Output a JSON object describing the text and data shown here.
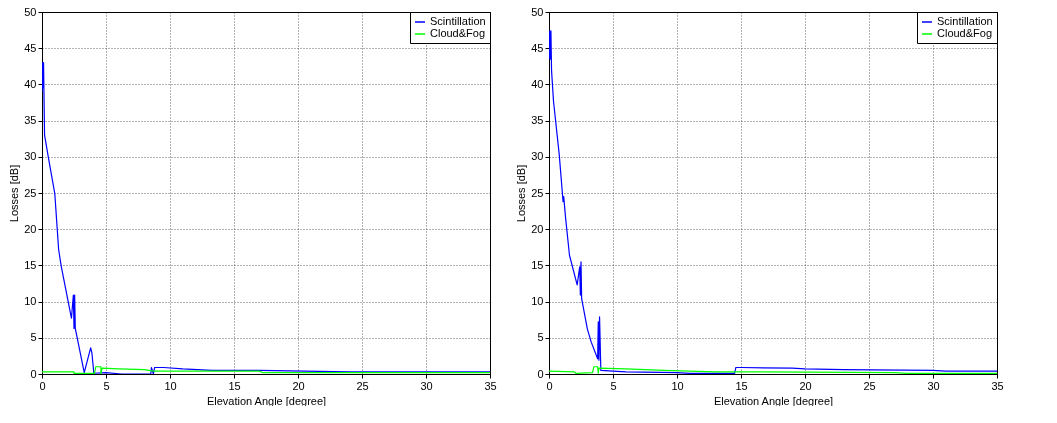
{
  "chart_data": [
    {
      "type": "line",
      "xlabel": "Elevation Angle [degree]",
      "ylabel": "Losses [dB]",
      "xlim": [
        0,
        35
      ],
      "ylim": [
        0,
        50
      ],
      "xticks": [
        0,
        5,
        10,
        15,
        20,
        25,
        30,
        35
      ],
      "yticks": [
        0,
        5,
        10,
        15,
        20,
        25,
        30,
        35,
        40,
        45,
        50
      ],
      "grid": true,
      "legend": "top right",
      "series": [
        {
          "name": "Scintillation",
          "color": "#0000ff",
          "x": [
            0,
            0.05,
            0.1,
            0.12,
            0.2,
            0.5,
            1.0,
            1.3,
            1.5,
            2.0,
            2.3,
            2.45,
            2.5,
            2.55,
            2.6,
            3.3,
            3.8,
            3.9,
            4.05,
            5.0,
            6.2,
            8.5,
            8.55,
            8.7,
            8.8,
            9.5,
            11,
            13.3,
            17,
            24,
            35
          ],
          "values": [
            39,
            43,
            39.5,
            43,
            33,
            29.9,
            24.9,
            17.2,
            14.9,
            10.4,
            7.7,
            10.9,
            6.3,
            10.9,
            6.3,
            0.2,
            3.6,
            2.9,
            0.1,
            0.2,
            0,
            0,
            0.9,
            0,
            0.9,
            0.9,
            0.7,
            0.5,
            0.5,
            0.3,
            0.3
          ]
        },
        {
          "name": "Cloud&Fog",
          "color": "#00ff00",
          "x": [
            0,
            2.5,
            2.5,
            4.1,
            4.2,
            4.6,
            4.6,
            4.7,
            6,
            8,
            8.7,
            17,
            17.2,
            35
          ],
          "values": [
            0.3,
            0.3,
            0.1,
            0.1,
            1.0,
            1.0,
            0,
            0.8,
            0.7,
            0.6,
            0.4,
            0.4,
            0.2,
            0.2
          ]
        }
      ]
    },
    {
      "type": "line",
      "xlabel": "Elevation Angle [degree]",
      "ylabel": "Losses [dB]",
      "xlim": [
        0,
        35
      ],
      "ylim": [
        0,
        50
      ],
      "xticks": [
        0,
        5,
        10,
        15,
        20,
        25,
        30,
        35
      ],
      "yticks": [
        0,
        5,
        10,
        15,
        20,
        25,
        30,
        35,
        40,
        45,
        50
      ],
      "grid": true,
      "legend": "top right",
      "series": [
        {
          "name": "Scintillation",
          "color": "#0000ff",
          "x": [
            0,
            0.05,
            0.1,
            0.15,
            0.2,
            0.35,
            0.8,
            1.1,
            1.15,
            1.3,
            1.6,
            2.2,
            2.4,
            2.45,
            2.5,
            2.55,
            3.0,
            3.3,
            3.8,
            3.85,
            3.9,
            3.95,
            4.05,
            5,
            6,
            10,
            11,
            14.5,
            14.6,
            15,
            19,
            20,
            23,
            30,
            31,
            35
          ],
          "values": [
            43.5,
            47.4,
            43.5,
            47.4,
            41.9,
            37.7,
            30.3,
            23.8,
            24.5,
            21.5,
            16.4,
            12.3,
            14.8,
            10.9,
            15.5,
            10.4,
            6.2,
            4.4,
            2.1,
            7.2,
            1.9,
            7.9,
            0.5,
            0.4,
            0.3,
            0.2,
            0.1,
            0.1,
            0.9,
            0.9,
            0.8,
            0.7,
            0.6,
            0.5,
            0.4,
            0.4
          ]
        },
        {
          "name": "Cloud&Fog",
          "color": "#00ff00",
          "x": [
            0,
            2,
            2.1,
            3.4,
            3.5,
            3.8,
            3.85,
            3.9,
            6,
            9,
            13,
            15,
            27,
            28,
            35
          ],
          "values": [
            0.4,
            0.3,
            0.1,
            0.2,
            1.0,
            1.0,
            0.1,
            0.8,
            0.7,
            0.5,
            0.3,
            0.3,
            0.2,
            0.1,
            0.1
          ]
        }
      ]
    }
  ]
}
